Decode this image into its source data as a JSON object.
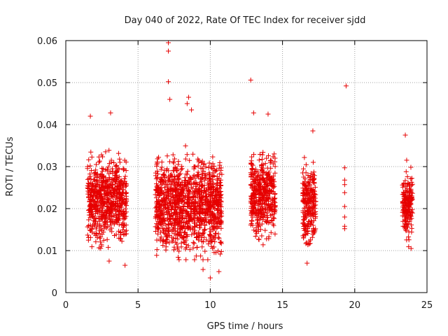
{
  "chart_data": {
    "type": "scatter",
    "title": "Day 040 of 2022, Rate Of TEC Index for receiver sjdd",
    "xlabel": "GPS time / hours",
    "ylabel": "ROTI / TECUs",
    "xlim": [
      0,
      25
    ],
    "ylim": [
      0,
      0.06
    ],
    "x_ticks": [
      0,
      5,
      10,
      15,
      20,
      25
    ],
    "y_ticks": [
      0,
      0.01,
      0.02,
      0.03,
      0.04,
      0.05,
      0.06
    ],
    "x_tick_labels": [
      "0",
      "5",
      "10",
      "15",
      "20",
      "25"
    ],
    "y_tick_labels": [
      "0",
      "0.01",
      "0.02",
      "0.03",
      "0.04",
      "0.05",
      "0.06"
    ],
    "grid": true,
    "marker": "plus",
    "color": "#e60000",
    "series": [
      {
        "clusters": [
          {
            "x_range": [
              1.5,
              4.2
            ],
            "y_mean": 0.022,
            "y_spread": 0.0075
          },
          {
            "x_range": [
              6.2,
              10.8
            ],
            "y_mean": 0.021,
            "y_spread": 0.0085
          },
          {
            "x_range": [
              12.8,
              14.5
            ],
            "y_mean": 0.023,
            "y_spread": 0.0075
          },
          {
            "x_range": [
              16.4,
              17.3
            ],
            "y_mean": 0.021,
            "y_spread": 0.007
          },
          {
            "x_range": [
              23.3,
              24.0
            ],
            "y_mean": 0.021,
            "y_spread": 0.0065
          }
        ],
        "points": [
          [
            7.1,
            0.0595
          ],
          [
            7.1,
            0.0575
          ],
          [
            7.1,
            0.0502
          ],
          [
            7.2,
            0.046
          ],
          [
            8.5,
            0.0465
          ],
          [
            8.4,
            0.045
          ],
          [
            12.8,
            0.0506
          ],
          [
            19.4,
            0.0492
          ],
          [
            19.3,
            0.0297
          ],
          [
            19.3,
            0.0268
          ],
          [
            19.3,
            0.0257
          ],
          [
            19.3,
            0.0238
          ],
          [
            19.3,
            0.0205
          ],
          [
            19.3,
            0.018
          ],
          [
            19.3,
            0.0158
          ],
          [
            19.3,
            0.0152
          ],
          [
            10.0,
            0.0035
          ],
          [
            10.6,
            0.005
          ],
          [
            9.5,
            0.0055
          ],
          [
            3.0,
            0.0075
          ],
          [
            16.7,
            0.007
          ],
          [
            14.0,
            0.0425
          ],
          [
            3.1,
            0.0428
          ],
          [
            1.7,
            0.042
          ],
          [
            8.7,
            0.0435
          ],
          [
            13.0,
            0.0428
          ],
          [
            17.1,
            0.0385
          ],
          [
            23.5,
            0.0375
          ],
          [
            4.1,
            0.0065
          ],
          [
            6.3,
            0.0125
          ],
          [
            23.9,
            0.0105
          ]
        ]
      }
    ]
  }
}
